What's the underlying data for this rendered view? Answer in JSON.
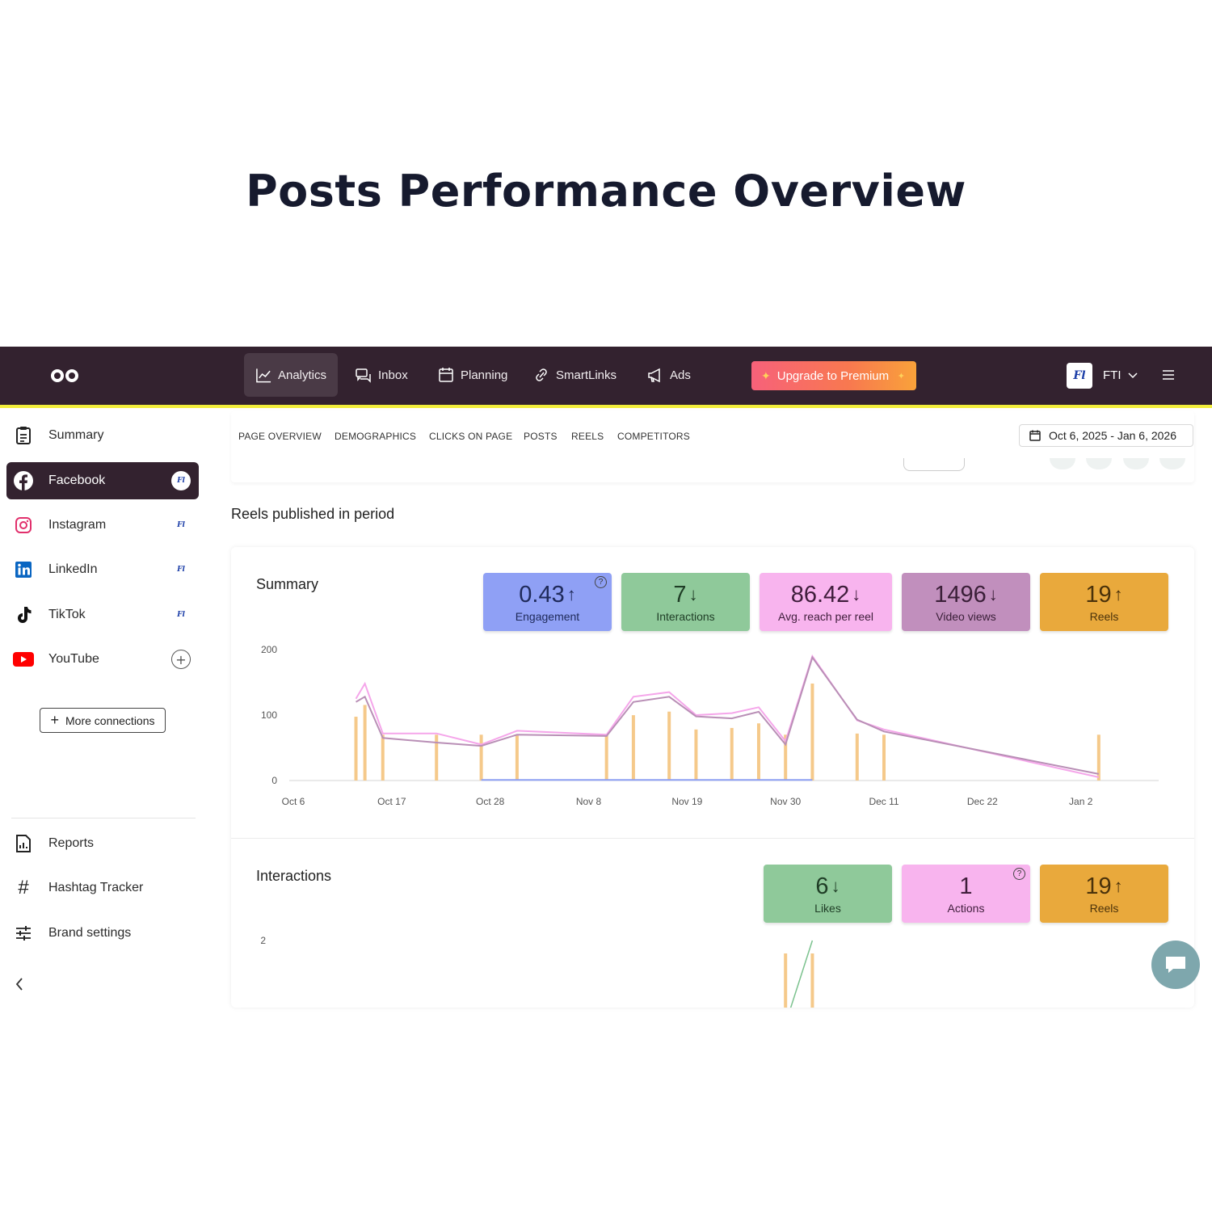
{
  "hero_title": "Posts Performance Overview",
  "topbar": {
    "nav": [
      {
        "label": "Analytics",
        "icon": "chart-line-icon",
        "active": true
      },
      {
        "label": "Inbox",
        "icon": "chat-bubbles-icon"
      },
      {
        "label": "Planning",
        "icon": "calendar-icon"
      },
      {
        "label": "SmartLinks",
        "icon": "link-icon"
      },
      {
        "label": "Ads",
        "icon": "megaphone-icon"
      }
    ],
    "upgrade_label": "Upgrade to Premium",
    "brand_avatar_text": "Fl",
    "brand_name": "FTI"
  },
  "sidebar": {
    "items": [
      {
        "label": "Summary",
        "icon": "clipboard-icon"
      },
      {
        "label": "Facebook",
        "icon": "facebook-icon",
        "active": true
      },
      {
        "label": "Instagram",
        "icon": "instagram-icon"
      },
      {
        "label": "LinkedIn",
        "icon": "linkedin-icon"
      },
      {
        "label": "TikTok",
        "icon": "tiktok-icon"
      },
      {
        "label": "YouTube",
        "icon": "youtube-icon"
      }
    ],
    "more_connections": "More connections",
    "bottom_items": [
      {
        "label": "Reports",
        "icon": "report-icon"
      },
      {
        "label": "Hashtag Tracker",
        "icon": "hashtag-icon"
      },
      {
        "label": "Brand settings",
        "icon": "sliders-icon"
      }
    ]
  },
  "tabs": [
    "PAGE OVERVIEW",
    "DEMOGRAPHICS",
    "CLICKS ON PAGE",
    "POSTS",
    "REELS",
    "COMPETITORS"
  ],
  "date_range": "Oct 6, 2025 - Jan 6, 2026",
  "section_label": "Reels published in period",
  "summary": {
    "title": "Summary",
    "kpis": [
      {
        "value": "0.43",
        "trend": "↑",
        "label": "Engagement",
        "color": "#8fa0f5",
        "help": true
      },
      {
        "value": "7",
        "trend": "↓",
        "label": "Interactions",
        "color": "#8fc99a"
      },
      {
        "value": "86.42",
        "trend": "↓",
        "label": "Avg. reach per reel",
        "color": "#f8b4ee"
      },
      {
        "value": "1496",
        "trend": "↓",
        "label": "Video views",
        "color": "#c18fbd"
      },
      {
        "value": "19",
        "trend": "↑",
        "label": "Reels",
        "color": "#e9a93c"
      }
    ]
  },
  "interactions": {
    "title": "Interactions",
    "kpis": [
      {
        "value": "6",
        "trend": "↓",
        "label": "Likes",
        "color": "#8fc99a"
      },
      {
        "value": "1",
        "trend": "",
        "label": "Actions",
        "color": "#f8b4ee",
        "help": true
      },
      {
        "value": "19",
        "trend": "↑",
        "label": "Reels",
        "color": "#e9a93c"
      }
    ]
  },
  "chart_data": [
    {
      "type": "line",
      "title": "",
      "x_tick_labels": [
        "Oct 6",
        "Oct 17",
        "Oct 28",
        "Nov 8",
        "Nov 19",
        "Nov 30",
        "Dec 11",
        "Dec 22",
        "Jan 2"
      ],
      "y_ticks": [
        0,
        100,
        200
      ],
      "ylim": [
        0,
        200
      ],
      "xlim": [
        "2025-10-06",
        "2026-01-06"
      ],
      "reel_dates": [
        "2025-10-13",
        "2025-10-14",
        "2025-10-16",
        "2025-10-22",
        "2025-10-27",
        "2025-10-31",
        "2025-11-10",
        "2025-11-13",
        "2025-11-17",
        "2025-11-20",
        "2025-11-24",
        "2025-11-27",
        "2025-11-30",
        "2025-12-03",
        "2025-12-08",
        "2025-12-11",
        "2026-01-04"
      ],
      "series": [
        {
          "color": "#f5a6ea",
          "points": [
            [
              "2025-10-13",
              125
            ],
            [
              "2025-10-14",
              148
            ],
            [
              "2025-10-16",
              72
            ],
            [
              "2025-10-22",
              72
            ],
            [
              "2025-10-27",
              55
            ],
            [
              "2025-10-31",
              76
            ],
            [
              "2025-11-10",
              70
            ],
            [
              "2025-11-13",
              128
            ],
            [
              "2025-11-17",
              135
            ],
            [
              "2025-11-20",
              100
            ],
            [
              "2025-11-24",
              103
            ],
            [
              "2025-11-27",
              112
            ],
            [
              "2025-11-30",
              60
            ],
            [
              "2025-12-03",
              190
            ],
            [
              "2025-12-08",
              92
            ],
            [
              "2025-12-11",
              78
            ],
            [
              "2026-01-04",
              5
            ]
          ]
        },
        {
          "color": "#b98fb6",
          "points": [
            [
              "2025-10-13",
              120
            ],
            [
              "2025-10-14",
              128
            ],
            [
              "2025-10-16",
              65
            ],
            [
              "2025-10-22",
              58
            ],
            [
              "2025-10-27",
              53
            ],
            [
              "2025-10-31",
              70
            ],
            [
              "2025-11-10",
              68
            ],
            [
              "2025-11-13",
              120
            ],
            [
              "2025-11-17",
              128
            ],
            [
              "2025-11-20",
              98
            ],
            [
              "2025-11-24",
              95
            ],
            [
              "2025-11-27",
              105
            ],
            [
              "2025-11-30",
              55
            ],
            [
              "2025-12-03",
              188
            ],
            [
              "2025-12-08",
              93
            ],
            [
              "2025-12-11",
              75
            ],
            [
              "2026-01-04",
              10
            ]
          ]
        },
        {
          "color": "#8ea0f4",
          "points": [
            [
              "2025-10-27",
              1
            ],
            [
              "2025-12-03",
              1
            ]
          ]
        }
      ],
      "bars": {
        "color": "#f5c98a"
      }
    },
    {
      "type": "line",
      "title": "",
      "y_ticks": [
        2
      ],
      "series": [
        {
          "color": "#7bc28e",
          "points": [
            [
              "2025-11-30",
              0
            ],
            [
              "2025-12-03",
              2
            ]
          ]
        }
      ],
      "bars": {
        "color": "#f5c98a",
        "dates": [
          "2025-11-30",
          "2025-12-03"
        ]
      }
    }
  ]
}
